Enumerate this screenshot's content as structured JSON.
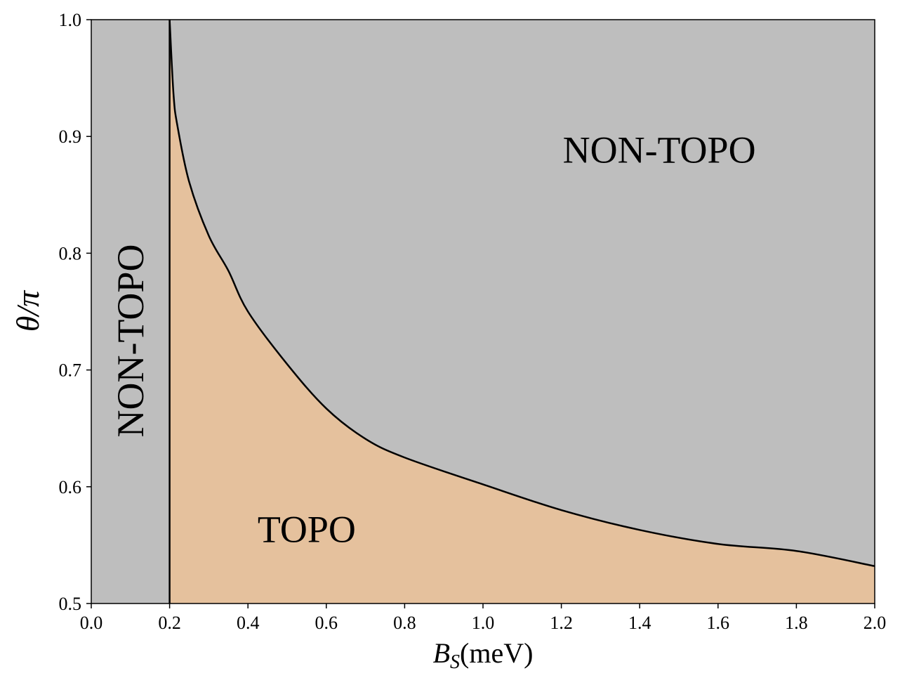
{
  "chart_data": {
    "type": "area",
    "xlabel_main": "B",
    "xlabel_sub": "S",
    "xlabel_unit": "(meV)",
    "ylabel": "θ/π",
    "xlim": [
      0.0,
      2.0
    ],
    "ylim": [
      0.5,
      1.0
    ],
    "x_ticks": [
      "0.0",
      "0.2",
      "0.4",
      "0.6",
      "0.8",
      "1.0",
      "1.2",
      "1.4",
      "1.6",
      "1.8",
      "2.0"
    ],
    "y_ticks": [
      "0.5",
      "0.6",
      "0.7",
      "0.8",
      "0.9",
      "1.0"
    ],
    "grid": false,
    "vertical_boundary_x": 0.2,
    "boundary_curve": {
      "x": [
        0.2,
        0.21,
        0.22,
        0.25,
        0.3,
        0.35,
        0.4,
        0.5,
        0.6,
        0.7,
        0.8,
        1.0,
        1.2,
        1.4,
        1.6,
        1.8,
        2.0
      ],
      "y": [
        1.0,
        0.936,
        0.909,
        0.861,
        0.815,
        0.785,
        0.75,
        0.705,
        0.667,
        0.641,
        0.625,
        0.602,
        0.58,
        0.563,
        0.551,
        0.545,
        0.532
      ]
    },
    "colors": {
      "non_topo": "#bebebe",
      "topo": "#e5c19d",
      "line": "#000000"
    },
    "regions": [
      {
        "label": "NON-TOPO",
        "x": 1.45,
        "y": 0.885,
        "rotation": 0
      },
      {
        "label": "NON-TOPO",
        "x": 0.11,
        "y": 0.725,
        "rotation": -90
      },
      {
        "label": "TOPO",
        "x": 0.55,
        "y": 0.56,
        "rotation": 0
      }
    ]
  }
}
